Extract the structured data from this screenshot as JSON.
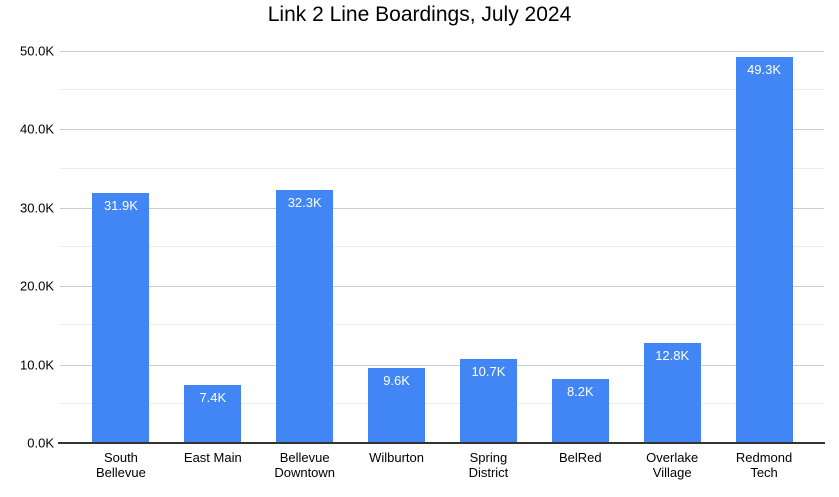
{
  "title": "Link 2 Line Boardings, July 2024",
  "chart_data": {
    "type": "bar",
    "title": "Link 2 Line Boardings, July 2024",
    "categories": [
      "South Bellevue",
      "East Main",
      "Bellevue Downtown",
      "Wilburton",
      "Spring District",
      "BelRed",
      "Overlake Village",
      "Redmond Tech"
    ],
    "category_label_lines": [
      [
        "South",
        "Bellevue"
      ],
      [
        "East Main"
      ],
      [
        "Bellevue",
        "Downtown"
      ],
      [
        "Wilburton"
      ],
      [
        "Spring",
        "District"
      ],
      [
        "BelRed"
      ],
      [
        "Overlake",
        "Village"
      ],
      [
        "Redmond",
        "Tech"
      ]
    ],
    "values": [
      31900,
      7400,
      32300,
      9600,
      10700,
      8200,
      12800,
      49300
    ],
    "value_labels": [
      "31.9K",
      "7.4K",
      "32.3K",
      "9.6K",
      "10.7K",
      "8.2K",
      "12.8K",
      "49.3K"
    ],
    "xlabel": "",
    "ylabel": "",
    "ylim": [
      0,
      50000
    ],
    "y_major_ticks": [
      0,
      10000,
      20000,
      30000,
      40000,
      50000
    ],
    "y_major_tick_labels": [
      "0.0K",
      "10.0K",
      "20.0K",
      "30.0K",
      "40.0K",
      "50.0K"
    ],
    "y_minor_ticks": [
      5000,
      15000,
      25000,
      35000,
      45000
    ],
    "grid": true,
    "legend": "none",
    "colors": {
      "bar": "#4285f4",
      "bar_label": "#ffffff",
      "gridline_major": "#cccccc",
      "gridline_minor": "#ececec",
      "axis_line": "#333333",
      "text": "#000000",
      "background": "#ffffff"
    }
  }
}
